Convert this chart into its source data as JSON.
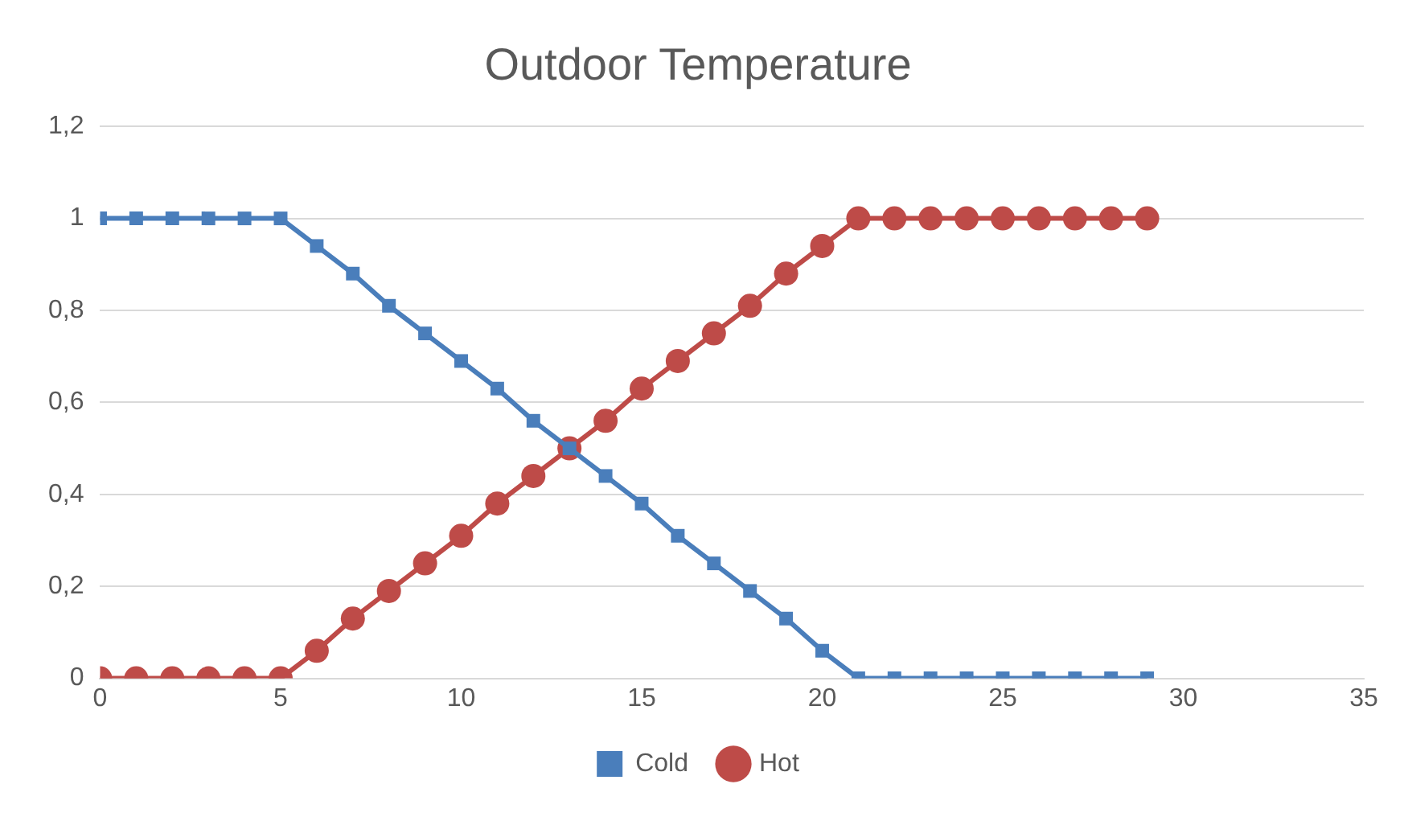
{
  "chart_data": {
    "type": "line",
    "title": "Outdoor Temperature",
    "x": [
      0,
      1,
      2,
      3,
      4,
      5,
      6,
      7,
      8,
      9,
      10,
      11,
      12,
      13,
      14,
      15,
      16,
      17,
      18,
      19,
      20,
      21,
      22,
      23,
      24,
      25,
      26,
      27,
      28,
      29
    ],
    "series": [
      {
        "name": "Cold",
        "color": "#4a7ebb",
        "marker": "square",
        "values": [
          1,
          1,
          1,
          1,
          1,
          1,
          0.94,
          0.88,
          0.81,
          0.75,
          0.69,
          0.63,
          0.56,
          0.5,
          0.44,
          0.38,
          0.31,
          0.25,
          0.19,
          0.13,
          0.06,
          0,
          0,
          0,
          0,
          0,
          0,
          0,
          0,
          0
        ]
      },
      {
        "name": "Hot",
        "color": "#be4b48",
        "marker": "circle",
        "values": [
          0,
          0,
          0,
          0,
          0,
          0,
          0.06,
          0.13,
          0.19,
          0.25,
          0.31,
          0.38,
          0.44,
          0.5,
          0.56,
          0.63,
          0.69,
          0.75,
          0.81,
          0.88,
          0.94,
          1,
          1,
          1,
          1,
          1,
          1,
          1,
          1,
          1
        ]
      }
    ],
    "xlim": [
      0,
      35
    ],
    "xticks": [
      0,
      5,
      10,
      15,
      20,
      25,
      30,
      35
    ],
    "ylim": [
      0,
      1.2
    ],
    "yticks": [
      0,
      {
        "value": 0.2,
        "label": "0,2"
      },
      {
        "value": 0.4,
        "label": "0,4"
      },
      {
        "value": 0.6,
        "label": "0,6"
      },
      {
        "value": 0.8,
        "label": "0,8"
      },
      1,
      {
        "value": 1.2,
        "label": "1,2"
      }
    ],
    "grid": "y",
    "legend": "bottom",
    "line_style": "solid"
  }
}
